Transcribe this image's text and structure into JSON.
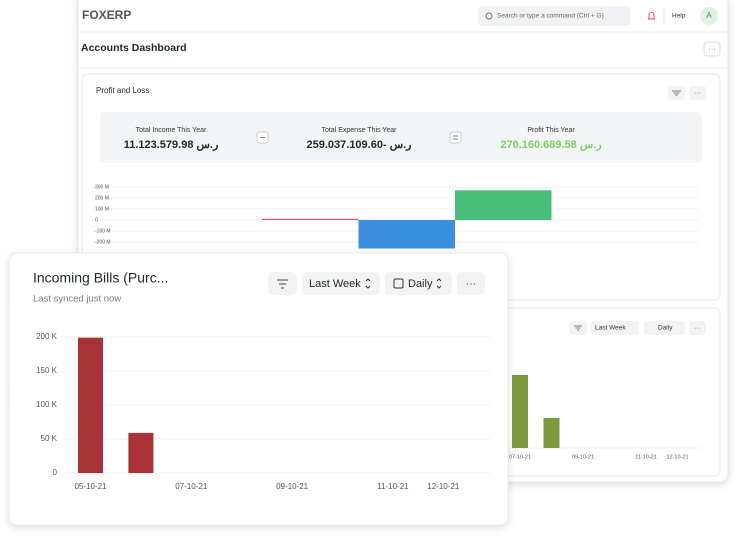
{
  "header": {
    "logo": "FOXERP",
    "search_placeholder": "Search or type a command (Ctrl + G)",
    "help": "Help",
    "avatar": "A"
  },
  "page_title": "Accounts Dashboard",
  "profit_and_loss": {
    "title": "Profit and Loss",
    "stats": [
      {
        "label": "Total Income This Year",
        "value": "11.123.579.98 ر.س"
      },
      {
        "label": "Total Expense This Year",
        "value": "259.037.109.60- ر.س"
      },
      {
        "label": "Profit This Year",
        "value": "270.160.689.58 ر.س"
      }
    ]
  },
  "bills_background": {
    "filters": [
      "Last Week",
      "Daily"
    ]
  },
  "incoming_bills": {
    "title": "Incoming Bills (Purc...",
    "subtitle": "Last synced just now",
    "filters": [
      "Last Week",
      "Daily"
    ]
  },
  "chart_data": [
    {
      "type": "bar",
      "values": [
        11.12,
        -259.04,
        270.16
      ],
      "colors": [
        "#e0557a",
        "#3a8ee0",
        "#48bf78"
      ],
      "ylim": [
        -300,
        330
      ],
      "yticks": [
        {
          "value": 300,
          "label": "300 M"
        },
        {
          "value": 200,
          "label": "200 M"
        },
        {
          "value": 100,
          "label": "100 M"
        },
        0,
        {
          "value": -100,
          "label": "-100 M"
        },
        {
          "value": -200,
          "label": "-200 M"
        }
      ],
      "grid": true
    },
    {
      "type": "bar",
      "categories": [
        null,
        null,
        "07-10-21",
        null,
        "09-10-21",
        null,
        "11-10-21",
        "12-10-21"
      ],
      "values": [
        null,
        null,
        146,
        60,
        0,
        0,
        0,
        0
      ],
      "color": "#7b9a3d",
      "ylim": [
        0,
        200
      ]
    },
    {
      "type": "bar",
      "categories": [
        "05-10-21",
        null,
        "07-10-21",
        null,
        "09-10-21",
        null,
        "11-10-21",
        "12-10-21"
      ],
      "values": [
        199000,
        59000,
        0,
        0,
        0,
        0,
        0,
        0
      ],
      "color": "#a83236",
      "ylim": [
        0,
        200000
      ],
      "yticks": [
        0,
        {
          "value": 50000,
          "label": "50 K"
        },
        {
          "value": 100000,
          "label": "100 K"
        },
        {
          "value": 150000,
          "label": "150 K"
        },
        {
          "value": 200000,
          "label": "200 K"
        }
      ],
      "grid": true
    }
  ]
}
